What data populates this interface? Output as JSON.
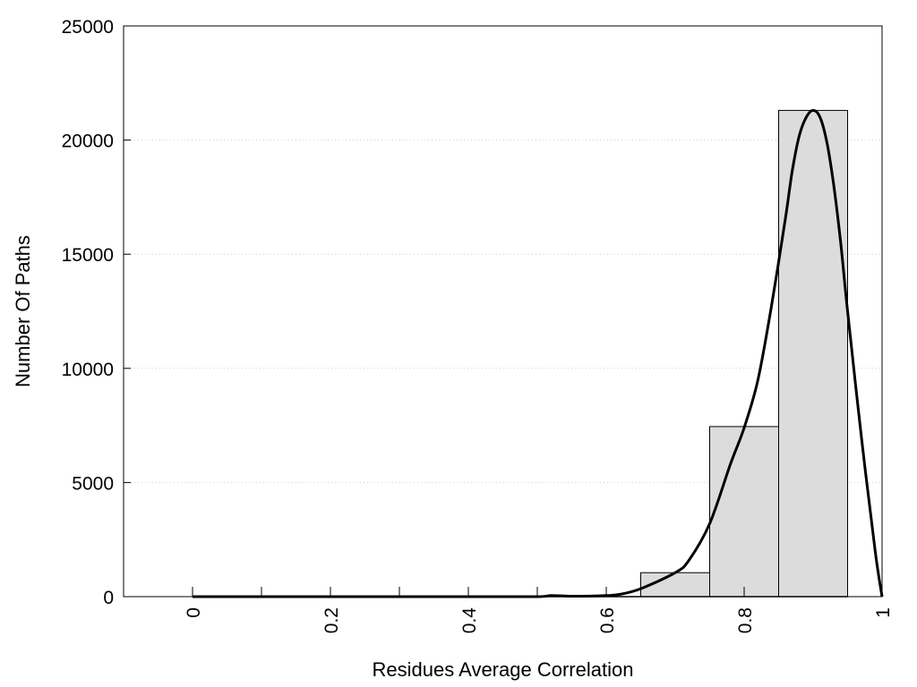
{
  "chart_data": {
    "type": "bar",
    "title": "",
    "xlabel": "Residues Average Correlation",
    "ylabel": "Number Of Paths",
    "xlim": [
      -0.1,
      1.0
    ],
    "ylim": [
      0,
      25000
    ],
    "x_ticks": [
      0,
      0.2,
      0.4,
      0.6,
      0.8,
      1
    ],
    "x_tick_labels": [
      "0",
      "0.2",
      "0.4",
      "0.6",
      "0.8",
      "1"
    ],
    "x_minor_ticks": [
      0.1,
      0.3,
      0.5
    ],
    "y_ticks": [
      0,
      5000,
      10000,
      15000,
      20000,
      25000
    ],
    "y_tick_labels": [
      "0",
      "5000",
      "10000",
      "15000",
      "20000",
      "25000"
    ],
    "grid": "horizontal dotted",
    "bins": [
      {
        "x0": 0.0,
        "x1": 0.1,
        "value": 0
      },
      {
        "x0": 0.1,
        "x1": 0.2,
        "value": 0
      },
      {
        "x0": 0.2,
        "x1": 0.3,
        "value": 0
      },
      {
        "x0": 0.3,
        "x1": 0.4,
        "value": 0
      },
      {
        "x0": 0.4,
        "x1": 0.5,
        "value": 0
      },
      {
        "x0": 0.5,
        "x1": 0.6,
        "value": 0
      },
      {
        "x0": 0.6,
        "x1": 0.65,
        "value": 0
      },
      {
        "x0": 0.65,
        "x1": 0.75,
        "value": 1050
      },
      {
        "x0": 0.75,
        "x1": 0.85,
        "value": 7450
      },
      {
        "x0": 0.85,
        "x1": 0.95,
        "value": 21300
      }
    ],
    "curve": {
      "x": [
        0.0,
        0.1,
        0.2,
        0.3,
        0.4,
        0.5,
        0.52,
        0.55,
        0.6,
        0.62,
        0.65,
        0.7,
        0.72,
        0.75,
        0.78,
        0.8,
        0.82,
        0.84,
        0.86,
        0.87,
        0.88,
        0.89,
        0.9,
        0.91,
        0.92,
        0.93,
        0.94,
        0.95,
        0.97,
        0.99,
        1.0
      ],
      "y": [
        0,
        0,
        0,
        0,
        0,
        0,
        50,
        20,
        50,
        100,
        350,
        1050,
        1600,
        3200,
        5800,
        7400,
        9500,
        12800,
        16600,
        18700,
        20200,
        21000,
        21300,
        21000,
        19900,
        18000,
        15500,
        12500,
        7000,
        2000,
        0
      ]
    },
    "colors": {
      "bar_fill": "#dcdcdc",
      "bar_stroke": "#000000",
      "curve": "#000000",
      "grid": "#cfcfcf"
    }
  }
}
